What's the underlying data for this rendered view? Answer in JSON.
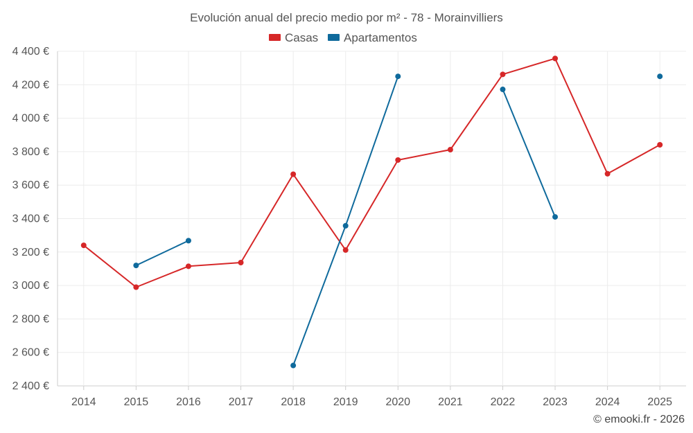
{
  "chart_data": {
    "type": "line",
    "title": "Evolución anual del precio medio por m² - 78 - Morainvilliers",
    "categories": [
      "2014",
      "2015",
      "2016",
      "2017",
      "2018",
      "2019",
      "2020",
      "2021",
      "2022",
      "2023",
      "2024",
      "2025"
    ],
    "ylim": [
      2400,
      4400
    ],
    "yticks": [
      2400,
      2600,
      2800,
      3000,
      3200,
      3400,
      3600,
      3800,
      4000,
      4200,
      4400
    ],
    "ytick_labels": [
      "2 400 €",
      "2 600 €",
      "2 800 €",
      "3 000 €",
      "3 200 €",
      "3 400 €",
      "3 600 €",
      "3 800 €",
      "4 000 €",
      "4 200 €",
      "4 400 €"
    ],
    "grid": true,
    "legend_position": "top-center",
    "series": [
      {
        "name": "Casas",
        "color": "#d62728",
        "values": [
          3240,
          2990,
          3115,
          3137,
          3665,
          3212,
          3750,
          3812,
          4262,
          4357,
          3668,
          3841
        ]
      },
      {
        "name": "Apartamentos",
        "color": "#0f6a9c",
        "values": [
          null,
          3120,
          3268,
          null,
          2522,
          3357,
          4250,
          null,
          4172,
          3410,
          null,
          4250
        ]
      }
    ],
    "credit": "© emooki.fr - 2026"
  }
}
